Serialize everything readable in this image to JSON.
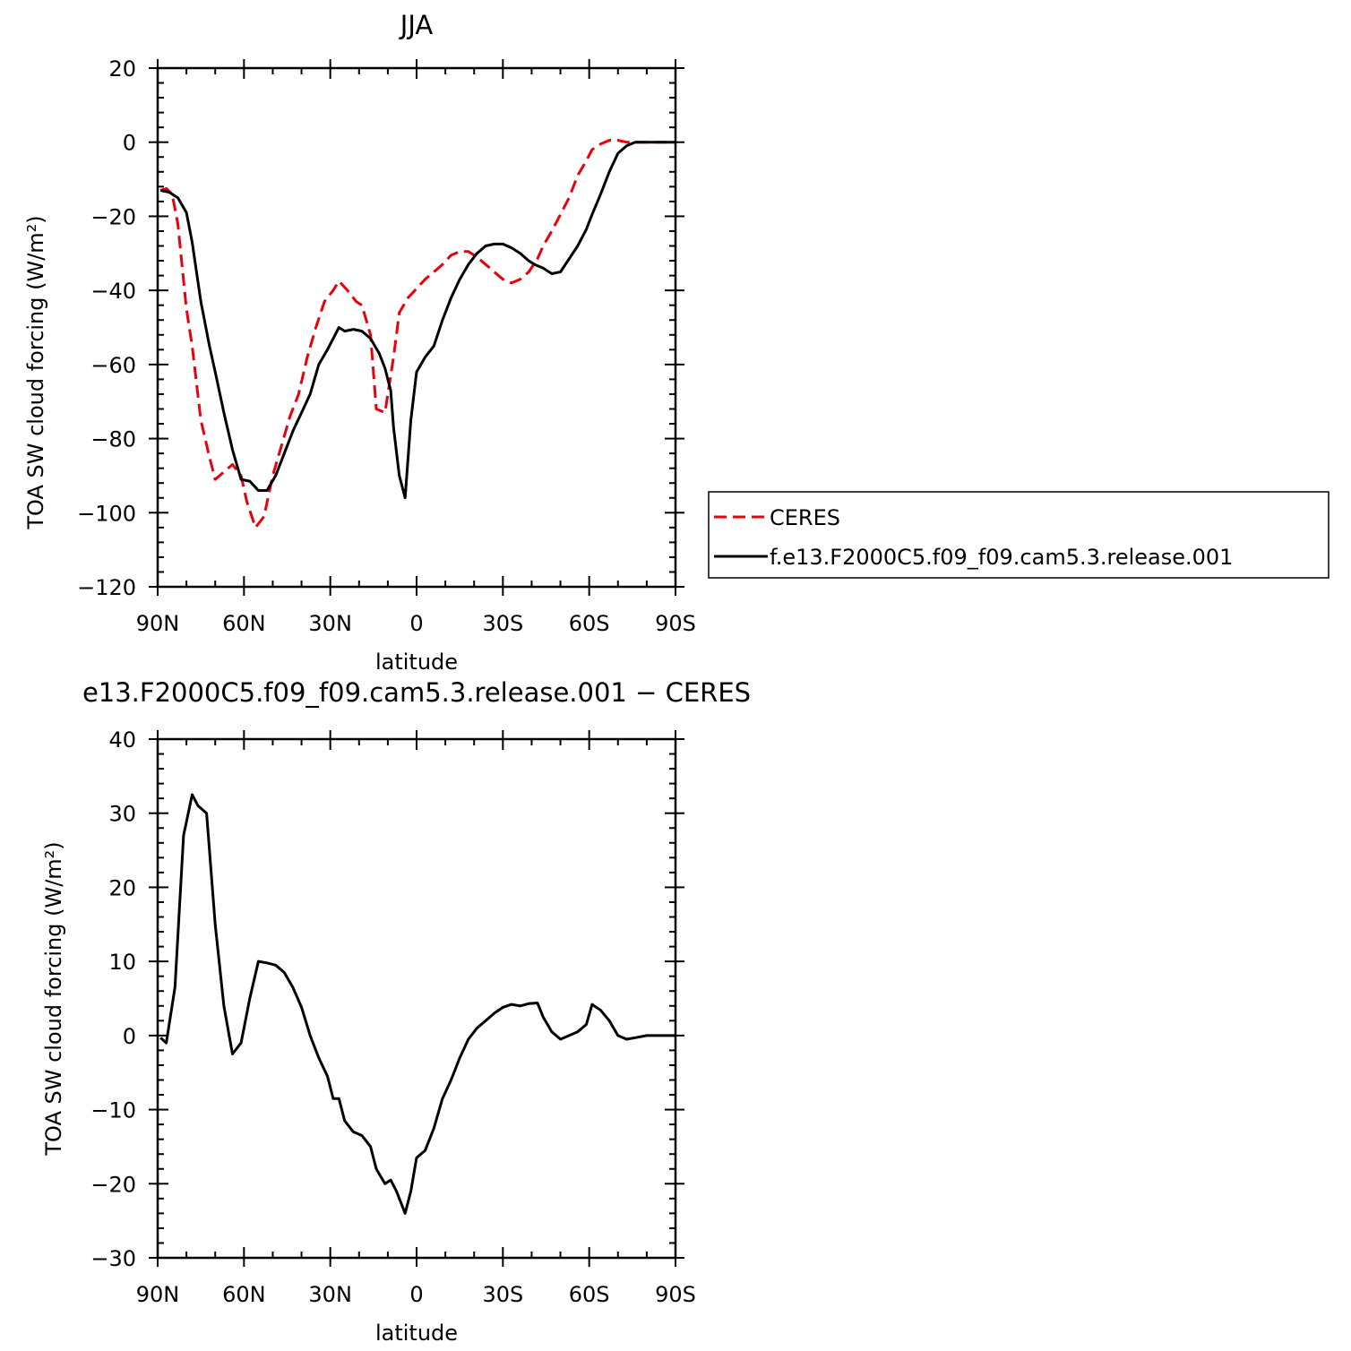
{
  "chart_data": [
    {
      "type": "line",
      "title": "JJA",
      "xlabel": "latitude",
      "ylabel": "TOA SW cloud forcing (W/m²)",
      "xlim": [
        90,
        -90
      ],
      "ylim": [
        -120,
        20
      ],
      "x_ticks": [
        90,
        60,
        30,
        0,
        -30,
        -60,
        -90
      ],
      "x_tick_labels": [
        "90N",
        "60N",
        "30N",
        "0",
        "30S",
        "60S",
        "90S"
      ],
      "y_ticks": [
        20,
        0,
        -20,
        -40,
        -60,
        -80,
        -100,
        -120
      ],
      "y_tick_labels": [
        "20",
        "0",
        "−20",
        "−40",
        "−60",
        "−80",
        "−100",
        "−120"
      ],
      "grid": false,
      "legend": "right",
      "series": [
        {
          "name": "CERES",
          "color": "#e8000b",
          "style": "dashed",
          "x": [
            89,
            87,
            85,
            83,
            80,
            78,
            75,
            72,
            70,
            67,
            64,
            61,
            59,
            56,
            53,
            50,
            47,
            44,
            41,
            38,
            35,
            32,
            29,
            27,
            24,
            21,
            19,
            16,
            14,
            11,
            8,
            6,
            3,
            0,
            -3,
            -6,
            -9,
            -12,
            -15,
            -18,
            -21,
            -24,
            -27,
            -30,
            -33,
            -36,
            -39,
            -42,
            -44,
            -47,
            -50,
            -53,
            -56,
            -59,
            -61,
            -64,
            -67,
            -70,
            -73,
            -76,
            -79,
            -82,
            -85,
            -88,
            -90
          ],
          "y": [
            -13,
            -12.5,
            -14,
            -22,
            -45,
            -55,
            -75,
            -85,
            -91,
            -89,
            -87,
            -90,
            -97,
            -104,
            -101,
            -90,
            -82,
            -74,
            -68,
            -58,
            -50,
            -43,
            -40,
            -37.5,
            -40,
            -43,
            -44,
            -52,
            -72,
            -73,
            -58,
            -46,
            -42,
            -39.5,
            -37,
            -35,
            -33,
            -30.5,
            -29.5,
            -29.5,
            -31,
            -33,
            -35,
            -37,
            -38,
            -37,
            -35,
            -31.5,
            -28,
            -24,
            -19.5,
            -15,
            -9,
            -5,
            -2,
            -0.5,
            0.5,
            0.5,
            0,
            0,
            0,
            0,
            0,
            0,
            0
          ]
        },
        {
          "name": "f.e13.F2000C5.f09_f09.cam5.3.release.001",
          "color": "#000000",
          "style": "solid",
          "x": [
            89,
            86,
            83,
            80,
            78,
            75,
            72,
            70,
            67,
            64,
            61,
            58,
            55,
            52,
            49,
            46,
            43,
            40,
            37,
            34,
            31,
            29,
            27,
            25,
            22,
            19,
            16,
            13,
            11,
            9,
            8,
            6,
            4,
            2,
            0,
            -3,
            -6,
            -9,
            -12,
            -15,
            -18,
            -21,
            -24,
            -27,
            -30,
            -33,
            -36,
            -39,
            -41,
            -44,
            -47,
            -50,
            -53,
            -56,
            -59,
            -61,
            -64,
            -67,
            -70,
            -73,
            -76,
            -80,
            -84,
            -88,
            -90
          ],
          "y": [
            -13,
            -13.5,
            -15,
            -19,
            -27,
            -43,
            -55,
            -62,
            -73,
            -83,
            -91,
            -91.5,
            -94,
            -94,
            -90,
            -84,
            -78,
            -73,
            -68,
            -60,
            -56,
            -53,
            -50,
            -51,
            -50.5,
            -51,
            -53,
            -57,
            -61,
            -67,
            -77,
            -90,
            -96,
            -75,
            -62,
            -58,
            -55,
            -48,
            -42,
            -37,
            -33,
            -30,
            -28,
            -27.5,
            -27.5,
            -28.5,
            -30,
            -32,
            -33,
            -34,
            -35.5,
            -35,
            -31.5,
            -28,
            -23.5,
            -19.5,
            -14,
            -8,
            -3,
            -1,
            0,
            0,
            0,
            0,
            0
          ]
        }
      ]
    },
    {
      "type": "line",
      "title": "e13.F2000C5.f09_f09.cam5.3.release.001 − CERES",
      "xlabel": "latitude",
      "ylabel": "TOA SW cloud forcing (W/m²)",
      "xlim": [
        90,
        -90
      ],
      "ylim": [
        -30,
        40
      ],
      "x_ticks": [
        90,
        60,
        30,
        0,
        -30,
        -60,
        -90
      ],
      "x_tick_labels": [
        "90N",
        "60N",
        "30N",
        "0",
        "30S",
        "60S",
        "90S"
      ],
      "y_ticks": [
        40,
        30,
        20,
        10,
        0,
        -10,
        -20,
        -30
      ],
      "y_tick_labels": [
        "40",
        "30",
        "20",
        "10",
        "0",
        "−10",
        "−20",
        "−30"
      ],
      "grid": false,
      "series": [
        {
          "color": "#000000",
          "style": "solid",
          "x": [
            89,
            87,
            84,
            81,
            78,
            76,
            73,
            70,
            67,
            64,
            61,
            58,
            55,
            52,
            49,
            46,
            43,
            40,
            37,
            34,
            31,
            29,
            27,
            25,
            22,
            19,
            16,
            14,
            11,
            9,
            7,
            4,
            2,
            0,
            -3,
            -6,
            -9,
            -12,
            -15,
            -18,
            -21,
            -24,
            -27,
            -30,
            -33,
            -36,
            -39,
            -42,
            -44,
            -47,
            -50,
            -53,
            -56,
            -59,
            -61,
            -64,
            -67,
            -70,
            -73,
            -76,
            -80,
            -84,
            -88,
            -90
          ],
          "y": [
            -0.3,
            -1,
            6.5,
            27,
            32.5,
            31,
            30,
            15,
            4,
            -2.5,
            -1,
            5,
            10,
            9.8,
            9.5,
            8.5,
            6.5,
            3.8,
            0,
            -3,
            -5.5,
            -8.5,
            -8.5,
            -11.5,
            -13,
            -13.5,
            -15,
            -18,
            -20,
            -19.5,
            -21,
            -24,
            -21,
            -16.5,
            -15.5,
            -12.5,
            -8.5,
            -6,
            -3,
            -0.5,
            1,
            2,
            3,
            3.8,
            4.2,
            4,
            4.3,
            4.4,
            2.5,
            0.5,
            -0.5,
            0,
            0.5,
            1.5,
            4.2,
            3.4,
            2,
            0,
            -0.5,
            -0.3,
            0,
            0,
            0,
            0
          ]
        }
      ]
    }
  ]
}
